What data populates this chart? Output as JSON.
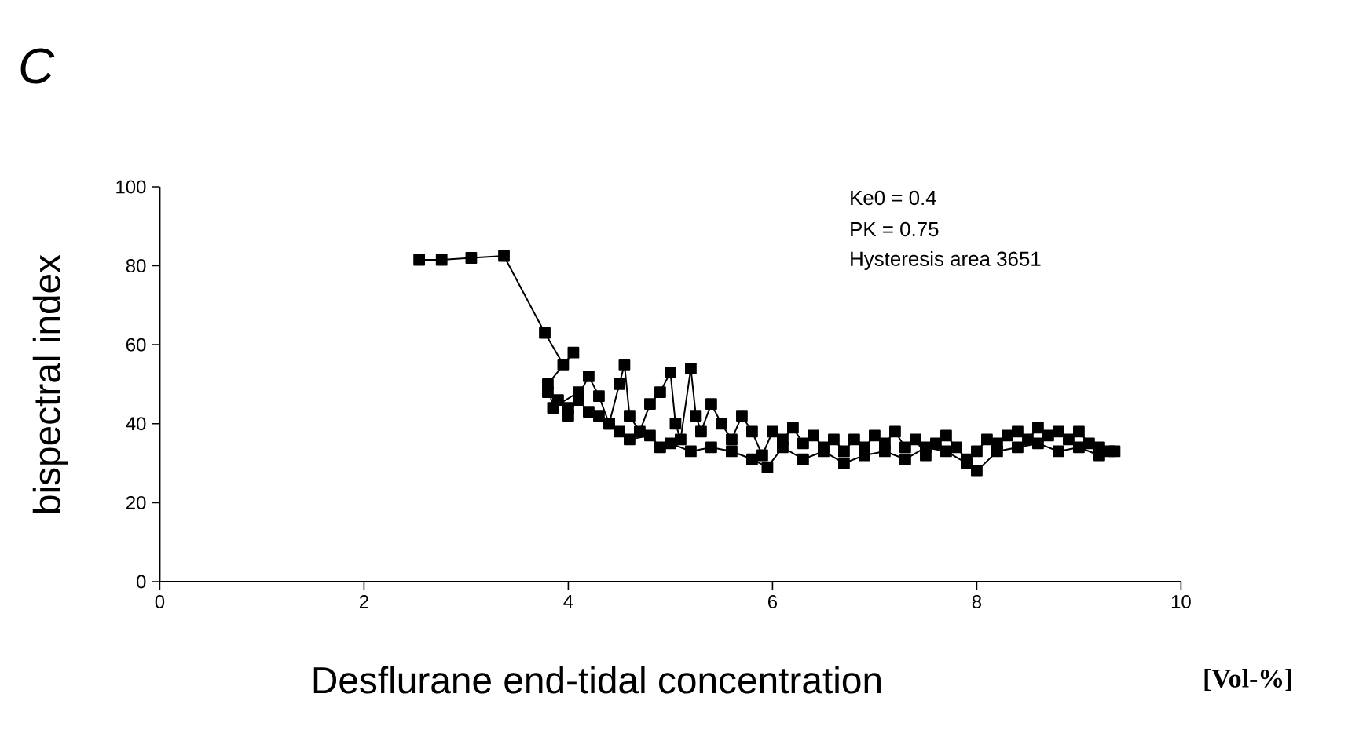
{
  "chart_data": {
    "type": "line",
    "title": "C",
    "xlabel": "Desflurane end-tidal concentration",
    "ylabel": "bispectral index",
    "annotations": [
      "Ke0 = 0.4",
      "PK = 0.75",
      "Hysteresis area 3651",
      "[Vol-%]"
    ],
    "xlim": [
      0,
      10
    ],
    "xticks": [
      0,
      2,
      4,
      6,
      8,
      10
    ],
    "ylim": [
      0,
      100
    ],
    "yticks": [
      0,
      20,
      40,
      60,
      80,
      100
    ],
    "grid": false,
    "marker": "square",
    "line_style": "solid",
    "series": [
      {
        "color": "#000000",
        "x": [
          2.54,
          2.76,
          3.05,
          3.37,
          3.77,
          3.95,
          4.05,
          3.8,
          3.85,
          4.1,
          4.0,
          4.2,
          4.3,
          4.4,
          4.5,
          4.55,
          4.6,
          4.7,
          4.8,
          4.9,
          5.0,
          5.05,
          5.1,
          5.2,
          5.25,
          5.3,
          5.4,
          5.5,
          5.6,
          5.7,
          5.8,
          5.9,
          6.0,
          6.1,
          6.2,
          6.3,
          6.4,
          6.5,
          6.6,
          6.7,
          6.8,
          6.9,
          7.0,
          7.1,
          7.2,
          7.3,
          7.4,
          7.5,
          7.6,
          7.7,
          7.8,
          7.9,
          8.0,
          8.1,
          8.2,
          8.3,
          8.4,
          8.5,
          8.6,
          8.7,
          8.8,
          8.9,
          9.0,
          9.1,
          9.2,
          9.3,
          9.35,
          9.2,
          9.0,
          8.8,
          8.6,
          8.4,
          8.2,
          8.0,
          7.9,
          7.7,
          7.5,
          7.3,
          7.1,
          6.9,
          6.7,
          6.5,
          6.3,
          6.1,
          5.95,
          5.8,
          5.6,
          5.4,
          5.2,
          5.0,
          4.9,
          4.8,
          4.6,
          4.5,
          4.4,
          4.3,
          4.2,
          4.1,
          4.0,
          3.9,
          3.8
        ],
        "values": [
          81.5,
          81.5,
          82,
          82.5,
          63,
          55,
          58,
          50,
          44,
          48,
          42,
          52,
          47,
          40,
          50,
          55,
          42,
          38,
          45,
          48,
          53,
          40,
          36,
          54,
          42,
          38,
          45,
          40,
          36,
          42,
          38,
          32,
          38,
          36,
          39,
          35,
          37,
          34,
          36,
          33,
          36,
          34,
          37,
          35,
          38,
          34,
          36,
          32,
          35,
          37,
          34,
          31,
          33,
          36,
          35,
          37,
          38,
          36,
          39,
          37,
          38,
          36,
          38,
          35,
          34,
          33,
          33,
          32,
          34,
          33,
          35,
          34,
          33,
          28,
          30,
          33,
          34,
          31,
          33,
          32,
          30,
          33,
          31,
          34,
          29,
          31,
          33,
          34,
          33,
          35,
          34,
          37,
          36,
          38,
          40,
          42,
          43,
          46,
          44,
          46,
          48
        ]
      }
    ]
  }
}
